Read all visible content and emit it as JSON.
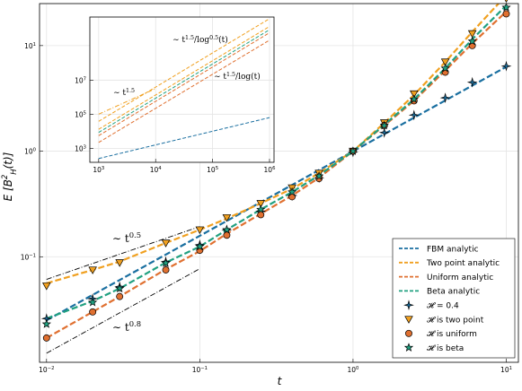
{
  "chart_data": [
    {
      "type": "line",
      "xlabel": "t",
      "ylabel": "E [B_H^2(t)]",
      "xscale": "log",
      "yscale": "log",
      "xlim": [
        0.009,
        12
      ],
      "ylim": [
        0.01,
        25
      ],
      "grid": true,
      "legend_position": "bottom-right",
      "x_ticks": [
        "10^-2",
        "10^-1",
        "10^0",
        "10^1"
      ],
      "y_ticks": [
        "10^-1",
        "10^0",
        "10^1"
      ],
      "x_tick_labels": [
        {
          "base": "10",
          "exp": "−2",
          "value": 0.01
        },
        {
          "base": "10",
          "exp": "−1",
          "value": 0.1
        },
        {
          "base": "10",
          "exp": "0",
          "value": 1
        },
        {
          "base": "10",
          "exp": "1",
          "value": 10
        }
      ],
      "y_tick_labels": [
        {
          "base": "10",
          "exp": "−1",
          "value": 0.1
        },
        {
          "base": "10",
          "exp": "0",
          "value": 1
        },
        {
          "base": "10",
          "exp": "1",
          "value": 10
        }
      ],
      "colors": {
        "fbm": "#1a6fa0",
        "two_point": "#f0a020",
        "uniform": "#e07030",
        "beta": "#20a080",
        "reference": "#000000"
      },
      "series": [
        {
          "name": "FBM analytic",
          "kind": "dashed-line",
          "color_key": "fbm",
          "x": [
            0.01,
            10
          ],
          "y": [
            0.025,
            6.3
          ]
        },
        {
          "name": "Two point analytic",
          "kind": "dashed-line",
          "color_key": "two_point",
          "x": [
            0.01,
            0.02,
            0.03,
            0.06,
            0.1,
            0.15,
            0.25,
            0.4,
            0.6,
            1,
            1.6,
            2.5,
            4,
            6,
            10
          ],
          "y": [
            0.056,
            0.075,
            0.09,
            0.135,
            0.18,
            0.23,
            0.32,
            0.44,
            0.62,
            1.0,
            1.85,
            3.4,
            7.0,
            13.5,
            30
          ]
        },
        {
          "name": "Uniform analytic",
          "kind": "dashed-line",
          "color_key": "uniform",
          "x": [
            0.01,
            0.02,
            0.03,
            0.06,
            0.1,
            0.15,
            0.25,
            0.4,
            0.6,
            1,
            1.6,
            2.5,
            4,
            6,
            10
          ],
          "y": [
            0.017,
            0.03,
            0.042,
            0.076,
            0.113,
            0.165,
            0.255,
            0.38,
            0.56,
            1.0,
            1.75,
            3.0,
            5.8,
            10.5,
            21
          ]
        },
        {
          "name": "Beta analytic",
          "kind": "dashed-line",
          "color_key": "beta",
          "x": [
            0.01,
            0.02,
            0.03,
            0.06,
            0.1,
            0.15,
            0.25,
            0.4,
            0.6,
            1,
            1.6,
            2.5,
            4,
            6,
            10
          ],
          "y": [
            0.026,
            0.038,
            0.05,
            0.088,
            0.125,
            0.18,
            0.28,
            0.41,
            0.59,
            1.0,
            1.78,
            3.1,
            6.1,
            11.5,
            24
          ]
        },
        {
          "name": "𝓗 = 0.4",
          "kind": "markers",
          "marker": "plus-star",
          "color_key": "fbm",
          "x": [
            0.01,
            0.02,
            0.03,
            0.06,
            0.1,
            0.15,
            0.25,
            0.4,
            0.6,
            1,
            1.6,
            2.5,
            4,
            6,
            10
          ],
          "y": [
            0.026,
            0.04,
            0.052,
            0.09,
            0.13,
            0.18,
            0.27,
            0.38,
            0.56,
            0.98,
            1.5,
            2.2,
            3.2,
            4.5,
            6.4
          ]
        },
        {
          "name": "𝓗 is two point",
          "kind": "markers",
          "marker": "triangle-down",
          "color_key": "two_point",
          "x": [
            0.01,
            0.02,
            0.03,
            0.06,
            0.1,
            0.15,
            0.25,
            0.4,
            0.6,
            1,
            1.6,
            2.5,
            4,
            6,
            10
          ],
          "y": [
            0.053,
            0.075,
            0.088,
            0.135,
            0.18,
            0.235,
            0.32,
            0.45,
            0.62,
            1.0,
            1.86,
            3.5,
            7.0,
            13.0,
            28
          ]
        },
        {
          "name": "𝓗 is uniform",
          "kind": "markers",
          "marker": "circle",
          "color_key": "uniform",
          "x": [
            0.01,
            0.02,
            0.03,
            0.06,
            0.1,
            0.15,
            0.25,
            0.4,
            0.6,
            1,
            1.6,
            2.5,
            4,
            6,
            10
          ],
          "y": [
            0.017,
            0.03,
            0.042,
            0.075,
            0.115,
            0.16,
            0.25,
            0.37,
            0.55,
            1.0,
            1.75,
            3.0,
            5.6,
            10.0,
            20
          ]
        },
        {
          "name": "𝓗 is beta",
          "kind": "markers",
          "marker": "star",
          "color_key": "beta",
          "x": [
            0.01,
            0.02,
            0.03,
            0.06,
            0.1,
            0.15,
            0.25,
            0.4,
            0.6,
            1,
            1.6,
            2.5,
            4,
            6,
            10
          ],
          "y": [
            0.023,
            0.037,
            0.05,
            0.087,
            0.125,
            0.18,
            0.28,
            0.41,
            0.58,
            1.0,
            1.75,
            3.1,
            6.1,
            11.0,
            23
          ]
        }
      ],
      "reference_lines": [
        {
          "label": "∼ t^0.5",
          "base": "∼ t",
          "exp": "0.5",
          "slope": 0.5,
          "x": [
            0.01,
            0.1
          ],
          "y": [
            0.061,
            0.193
          ]
        },
        {
          "label": "∼ t^0.8",
          "base": "∼ t",
          "exp": "0.8",
          "slope": 0.8,
          "x": [
            0.01,
            0.1
          ],
          "y": [
            0.0122,
            0.077
          ]
        }
      ]
    },
    {
      "type": "line",
      "role": "inset",
      "xscale": "log",
      "yscale": "log",
      "xlim": [
        700,
        1200000
      ],
      "ylim": [
        150,
        50000000000
      ],
      "grid": true,
      "x_ticks": [
        "10^3",
        "10^4",
        "10^5",
        "10^6"
      ],
      "y_ticks": [
        "10^3",
        "10^5",
        "10^7"
      ],
      "x_tick_labels": [
        {
          "base": "10",
          "exp": "3",
          "value": 1000
        },
        {
          "base": "10",
          "exp": "4",
          "value": 10000
        },
        {
          "base": "10",
          "exp": "5",
          "value": 100000
        },
        {
          "base": "10",
          "exp": "6",
          "value": 1000000
        }
      ],
      "y_tick_labels": [
        {
          "base": "10",
          "exp": "3",
          "value": 1000
        },
        {
          "base": "10",
          "exp": "5",
          "value": 100000
        },
        {
          "base": "10",
          "exp": "7",
          "value": 10000000
        }
      ],
      "series": [
        {
          "kind": "dashed-line",
          "color_key": "fbm",
          "x": [
            1000,
            1000000
          ],
          "y": [
            250,
            63000
          ]
        },
        {
          "kind": "dashed-line",
          "color_key": "two_point",
          "x": [
            1000,
            1000000
          ],
          "y": [
            38000,
            40000000000
          ]
        },
        {
          "kind": "dashed-line",
          "color_key": "two_point",
          "x": [
            1000,
            1000000
          ],
          "y": [
            13000,
            14000000000
          ]
        },
        {
          "kind": "dashed-line",
          "color_key": "uniform",
          "x": [
            1000,
            1000000
          ],
          "y": [
            5500,
            6000000000
          ]
        },
        {
          "kind": "dashed-line",
          "color_key": "uniform",
          "x": [
            1000,
            1000000
          ],
          "y": [
            2200,
            2200000000
          ]
        },
        {
          "kind": "dashed-line",
          "color_key": "beta",
          "x": [
            1000,
            1000000
          ],
          "y": [
            8500,
            9000000000
          ]
        }
      ],
      "reference_lines": [
        {
          "label": "∼ t^1.5",
          "base": "∼ t",
          "exp": "1.5",
          "slope": 1.5,
          "x": [
            1000,
            10000
          ],
          "y": [
            100000,
            3160000
          ]
        }
      ],
      "annotations": [
        {
          "text": "∼ t^1.5",
          "base": "∼ t",
          "exp": "1.5"
        },
        {
          "text": "∼ t^1.5/log^0.5(t)",
          "base": "∼ t",
          "exp": "1.5",
          "mid": "/log",
          "exp2": "0.5",
          "tail": "(t)"
        },
        {
          "text": "∼ t^1.5/log(t)",
          "base": "∼ t",
          "exp": "1.5",
          "tail": "/log(t)"
        }
      ]
    }
  ]
}
